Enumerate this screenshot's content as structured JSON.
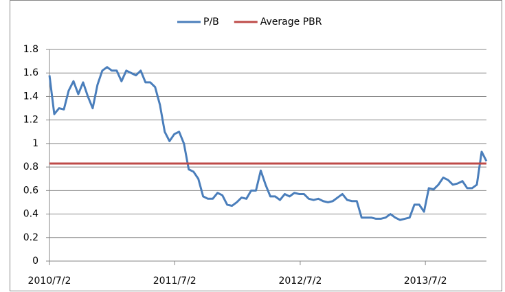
{
  "chart_data": {
    "type": "line",
    "x": [
      "2010/7/2",
      "2010/7/16",
      "2010/7/30",
      "2010/8/13",
      "2010/8/27",
      "2010/9/10",
      "2010/9/24",
      "2010/10/8",
      "2010/10/22",
      "2010/11/5",
      "2010/11/19",
      "2010/12/3",
      "2010/12/17",
      "2010/12/31",
      "2011/1/14",
      "2011/1/28",
      "2011/2/11",
      "2011/2/25",
      "2011/3/11",
      "2011/3/25",
      "2011/4/8",
      "2011/4/22",
      "2011/5/6",
      "2011/5/20",
      "2011/6/3",
      "2011/6/17",
      "2011/7/1",
      "2011/7/15",
      "2011/7/29",
      "2011/8/12",
      "2011/8/26",
      "2011/9/9",
      "2011/9/23",
      "2011/10/7",
      "2011/10/21",
      "2011/11/4",
      "2011/11/18",
      "2011/12/2",
      "2011/12/16",
      "2011/12/30",
      "2012/1/13",
      "2012/1/27",
      "2012/2/10",
      "2012/2/24",
      "2012/3/9",
      "2012/3/23",
      "2012/4/6",
      "2012/4/20",
      "2012/5/4",
      "2012/5/18",
      "2012/6/1",
      "2012/6/15",
      "2012/6/29",
      "2012/7/13",
      "2012/7/27",
      "2012/8/10",
      "2012/8/24",
      "2012/9/7",
      "2012/9/21",
      "2012/10/5",
      "2012/10/19",
      "2012/11/2",
      "2012/11/16",
      "2012/11/30",
      "2012/12/14",
      "2012/12/28",
      "2013/1/11",
      "2013/1/25",
      "2013/2/8",
      "2013/2/22",
      "2013/3/8",
      "2013/3/22",
      "2013/4/5",
      "2013/4/19",
      "2013/5/3",
      "2013/5/17",
      "2013/5/31",
      "2013/6/14",
      "2013/6/28",
      "2013/7/12",
      "2013/7/26",
      "2013/8/9",
      "2013/8/23",
      "2013/9/6",
      "2013/9/20",
      "2013/10/4",
      "2013/10/18",
      "2013/11/1",
      "2013/11/15",
      "2013/11/29",
      "2013/12/13",
      "2013/12/27"
    ],
    "series": [
      {
        "name": "P/B",
        "color": "#4a7ebb",
        "values": [
          1.58,
          1.25,
          1.3,
          1.29,
          1.45,
          1.53,
          1.42,
          1.52,
          1.4,
          1.3,
          1.5,
          1.62,
          1.65,
          1.62,
          1.62,
          1.53,
          1.62,
          1.6,
          1.58,
          1.62,
          1.52,
          1.52,
          1.48,
          1.33,
          1.1,
          1.02,
          1.08,
          1.1,
          1.0,
          0.78,
          0.76,
          0.7,
          0.55,
          0.53,
          0.53,
          0.58,
          0.56,
          0.48,
          0.47,
          0.5,
          0.54,
          0.53,
          0.6,
          0.6,
          0.77,
          0.65,
          0.55,
          0.55,
          0.52,
          0.57,
          0.55,
          0.58,
          0.57,
          0.57,
          0.53,
          0.52,
          0.53,
          0.51,
          0.5,
          0.51,
          0.54,
          0.57,
          0.52,
          0.51,
          0.51,
          0.37,
          0.37,
          0.37,
          0.36,
          0.36,
          0.37,
          0.4,
          0.37,
          0.35,
          0.36,
          0.37,
          0.48,
          0.48,
          0.42,
          0.62,
          0.61,
          0.65,
          0.71,
          0.69,
          0.65,
          0.66,
          0.68,
          0.62,
          0.62,
          0.65,
          0.93,
          0.85
        ]
      },
      {
        "name": "Average PBR",
        "color": "#be4b48",
        "value": 0.83
      }
    ],
    "xlim": [
      "2010/7/2",
      "2013/12/27"
    ],
    "xticks": [
      "2010/7/2",
      "2011/7/2",
      "2012/7/2",
      "2013/7/2"
    ],
    "ylim": [
      0,
      1.8
    ],
    "yticks": [
      0,
      0.2,
      0.4,
      0.6,
      0.8,
      1,
      1.2,
      1.4,
      1.6,
      1.8
    ],
    "grid": true,
    "legend": "top"
  }
}
